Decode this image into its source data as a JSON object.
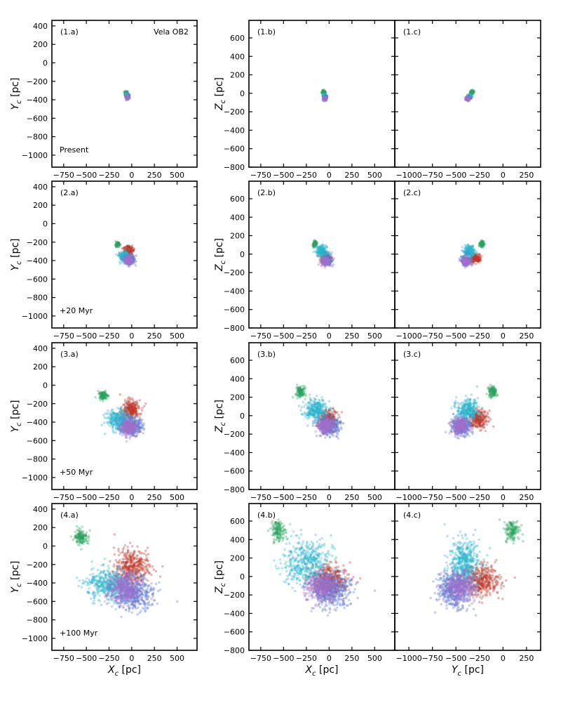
{
  "colors": {
    "green": "#2ca25f",
    "red": "#c0392b",
    "cyan": "#2bb5cf",
    "blue": "#5b78d1",
    "purple": "#a070cc"
  },
  "axes": {
    "xc_label": "X",
    "yc_label": "Y",
    "zc_label": "Z",
    "sub": "c",
    "unit": " [pc]",
    "xc_ticks": [
      -750,
      -500,
      -250,
      0,
      250,
      500
    ],
    "xc_range": [
      -880,
      720
    ],
    "yc_ticks_h": [
      -1000,
      -750,
      -500,
      -250,
      0,
      250
    ],
    "yc_range_h": [
      -1150,
      400
    ],
    "yc_ticks_v": [
      -1000,
      -800,
      -600,
      -400,
      -200,
      0,
      200,
      400
    ],
    "yc_range_v": [
      -1130,
      460
    ],
    "zc_ticks_v": [
      -800,
      -600,
      -400,
      -200,
      0,
      200,
      400,
      600
    ],
    "zc_range_v": [
      -800,
      790
    ]
  },
  "cluster": "Vela OB2",
  "chart_data": [
    {
      "type": "scatter",
      "epoch": "Present",
      "panels": [
        {
          "tag": "(1.a)",
          "x": "X_c",
          "y": "Y_c"
        },
        {
          "tag": "(1.b)",
          "x": "X_c",
          "y": "Z_c"
        },
        {
          "tag": "(1.c)",
          "x": "Y_c",
          "y": "Z_c"
        }
      ],
      "groups": [
        {
          "color": "green",
          "n": 80,
          "xc": -60,
          "yc": -330,
          "zc": 10,
          "sx": 10,
          "sy": 10,
          "sz": 10
        },
        {
          "color": "red",
          "n": 80,
          "xc": -45,
          "yc": -355,
          "zc": -40,
          "sx": 10,
          "sy": 10,
          "sz": 10
        },
        {
          "color": "cyan",
          "n": 80,
          "xc": -55,
          "yc": -350,
          "zc": -30,
          "sx": 10,
          "sy": 10,
          "sz": 10
        },
        {
          "color": "blue",
          "n": 80,
          "xc": -45,
          "yc": -370,
          "zc": -55,
          "sx": 10,
          "sy": 10,
          "sz": 10
        },
        {
          "color": "purple",
          "n": 80,
          "xc": -50,
          "yc": -375,
          "zc": -60,
          "sx": 10,
          "sy": 10,
          "sz": 10
        }
      ]
    },
    {
      "type": "scatter",
      "epoch": "+20 Myr",
      "panels": [
        {
          "tag": "(2.a)",
          "x": "X_c",
          "y": "Y_c"
        },
        {
          "tag": "(2.b)",
          "x": "X_c",
          "y": "Z_c"
        },
        {
          "tag": "(2.c)",
          "x": "Y_c",
          "y": "Z_c"
        }
      ],
      "groups": [
        {
          "color": "green",
          "n": 90,
          "xc": -160,
          "yc": -225,
          "zc": 110,
          "sx": 12,
          "sy": 12,
          "sz": 15
        },
        {
          "color": "red",
          "n": 160,
          "xc": -30,
          "yc": -285,
          "zc": -45,
          "sx": 28,
          "sy": 28,
          "sz": 25
        },
        {
          "color": "cyan",
          "n": 180,
          "xc": -80,
          "yc": -360,
          "zc": 30,
          "sx": 30,
          "sy": 30,
          "sz": 30
        },
        {
          "color": "blue",
          "n": 160,
          "xc": -20,
          "yc": -390,
          "zc": -70,
          "sx": 28,
          "sy": 25,
          "sz": 25
        },
        {
          "color": "purple",
          "n": 140,
          "xc": -40,
          "yc": -395,
          "zc": -80,
          "sx": 25,
          "sy": 22,
          "sz": 22
        }
      ]
    },
    {
      "type": "scatter",
      "epoch": "+50 Myr",
      "panels": [
        {
          "tag": "(3.a)",
          "x": "X_c",
          "y": "Y_c"
        },
        {
          "tag": "(3.b)",
          "x": "X_c",
          "y": "Z_c"
        },
        {
          "tag": "(3.c)",
          "x": "Y_c",
          "y": "Z_c"
        }
      ],
      "groups": [
        {
          "color": "green",
          "n": 110,
          "xc": -320,
          "yc": -110,
          "zc": 260,
          "sx": 25,
          "sy": 22,
          "sz": 30
        },
        {
          "color": "red",
          "n": 260,
          "xc": -10,
          "yc": -260,
          "zc": -40,
          "sx": 50,
          "sy": 50,
          "sz": 45
        },
        {
          "color": "cyan",
          "n": 300,
          "xc": -150,
          "yc": -380,
          "zc": 60,
          "sx": 65,
          "sy": 55,
          "sz": 60
        },
        {
          "color": "blue",
          "n": 280,
          "xc": 0,
          "yc": -440,
          "zc": -110,
          "sx": 60,
          "sy": 50,
          "sz": 50
        },
        {
          "color": "purple",
          "n": 240,
          "xc": -40,
          "yc": -460,
          "zc": -110,
          "sx": 45,
          "sy": 45,
          "sz": 45
        }
      ]
    },
    {
      "type": "scatter",
      "epoch": "+100 Myr",
      "panels": [
        {
          "tag": "(4.a)",
          "x": "X_c",
          "y": "Y_c"
        },
        {
          "tag": "(4.b)",
          "x": "X_c",
          "y": "Z_c"
        },
        {
          "tag": "(4.c)",
          "x": "Y_c",
          "y": "Z_c"
        }
      ],
      "groups": [
        {
          "color": "green",
          "n": 140,
          "xc": -560,
          "yc": 100,
          "zc": 500,
          "sx": 40,
          "sy": 40,
          "sz": 55
        },
        {
          "color": "red",
          "n": 400,
          "xc": 0,
          "yc": -230,
          "zc": -40,
          "sx": 95,
          "sy": 100,
          "sz": 80
        },
        {
          "color": "cyan",
          "n": 450,
          "xc": -250,
          "yc": -420,
          "zc": 150,
          "sx": 120,
          "sy": 85,
          "sz": 130
        },
        {
          "color": "blue",
          "n": 420,
          "xc": 30,
          "yc": -520,
          "zc": -150,
          "sx": 110,
          "sy": 90,
          "sz": 90
        },
        {
          "color": "purple",
          "n": 350,
          "xc": -80,
          "yc": -460,
          "zc": -110,
          "sx": 85,
          "sy": 80,
          "sz": 80
        }
      ]
    }
  ]
}
